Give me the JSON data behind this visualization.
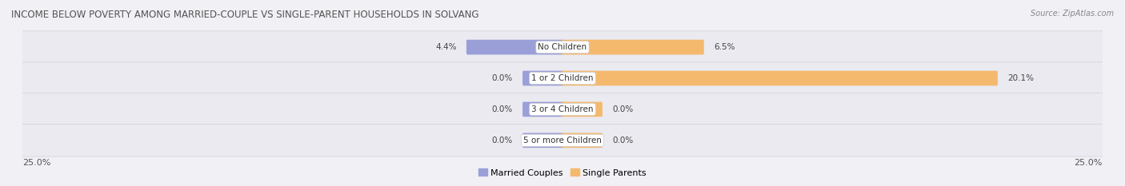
{
  "title": "INCOME BELOW POVERTY AMONG MARRIED-COUPLE VS SINGLE-PARENT HOUSEHOLDS IN SOLVANG",
  "source": "Source: ZipAtlas.com",
  "categories": [
    "No Children",
    "1 or 2 Children",
    "3 or 4 Children",
    "5 or more Children"
  ],
  "married_couples": [
    4.4,
    0.0,
    0.0,
    0.0
  ],
  "single_parents": [
    6.5,
    20.1,
    0.0,
    0.0
  ],
  "x_max": 25.0,
  "married_color": "#8b8fc8",
  "single_color": "#f5a94e",
  "married_color_light": "#9b9fd8",
  "single_color_light": "#f5b96e",
  "bg_row_color": "#e8e8ee",
  "bg_row_color2": "#ededf2",
  "title_fontsize": 8.5,
  "source_fontsize": 7,
  "label_fontsize": 7.5,
  "category_fontsize": 7.5,
  "legend_fontsize": 8,
  "axis_label_fontsize": 8,
  "min_bar_width": 1.8
}
